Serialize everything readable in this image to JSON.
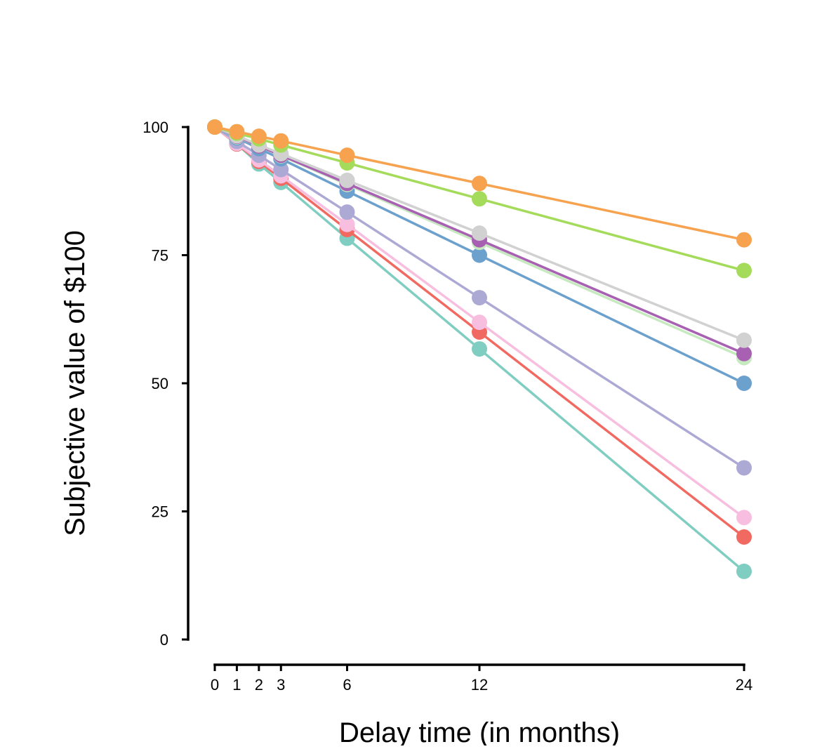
{
  "chart_data": {
    "type": "line",
    "title": "",
    "xlabel": "Delay time (in months)",
    "ylabel": "Subjective value of $100",
    "x": [
      0,
      1,
      2,
      3,
      6,
      12,
      24
    ],
    "x_tick_labels": [
      "0",
      "1",
      "2",
      "3",
      "6",
      "12",
      "24"
    ],
    "y_ticks": [
      0,
      25,
      50,
      75,
      100
    ],
    "y_tick_labels": [
      "0",
      "25",
      "50",
      "75",
      "100"
    ],
    "xlim": [
      0,
      24
    ],
    "ylim": [
      0,
      100
    ],
    "grid": false,
    "legend": "none",
    "series": [
      {
        "color": "#80CDC1",
        "values": [
          100,
          96.7,
          92.8,
          89.2,
          78.3,
          56.7,
          13.3
        ]
      },
      {
        "color": "#F16A62",
        "values": [
          100,
          96.7,
          93.3,
          90.0,
          80.0,
          60.0,
          20.0
        ]
      },
      {
        "color": "#F7BEDF",
        "values": [
          100,
          96.8,
          93.6,
          90.5,
          81.0,
          61.9,
          23.8
        ]
      },
      {
        "color": "#ADA9D5",
        "values": [
          100,
          97.2,
          94.5,
          91.7,
          83.4,
          66.7,
          33.5
        ]
      },
      {
        "color": "#6CA0CD",
        "values": [
          100,
          97.9,
          95.8,
          93.8,
          87.5,
          75.0,
          50.0
        ]
      },
      {
        "color": "#C7E9C0",
        "values": [
          100,
          98.1,
          96.3,
          94.4,
          88.8,
          77.5,
          55.0
        ]
      },
      {
        "color": "#A861B2",
        "values": [
          100,
          98.2,
          96.3,
          94.5,
          89.0,
          78.0,
          55.8
        ]
      },
      {
        "color": "#D1D1D1",
        "values": [
          100,
          98.3,
          96.5,
          94.8,
          89.6,
          79.3,
          58.4
        ]
      },
      {
        "color": "#A4DB5A",
        "values": [
          100,
          98.8,
          97.7,
          96.5,
          93.0,
          86.0,
          72.0
        ]
      },
      {
        "color": "#F7A24F",
        "values": [
          100,
          99.1,
          98.2,
          97.3,
          94.5,
          89.0,
          78.0
        ]
      }
    ]
  }
}
